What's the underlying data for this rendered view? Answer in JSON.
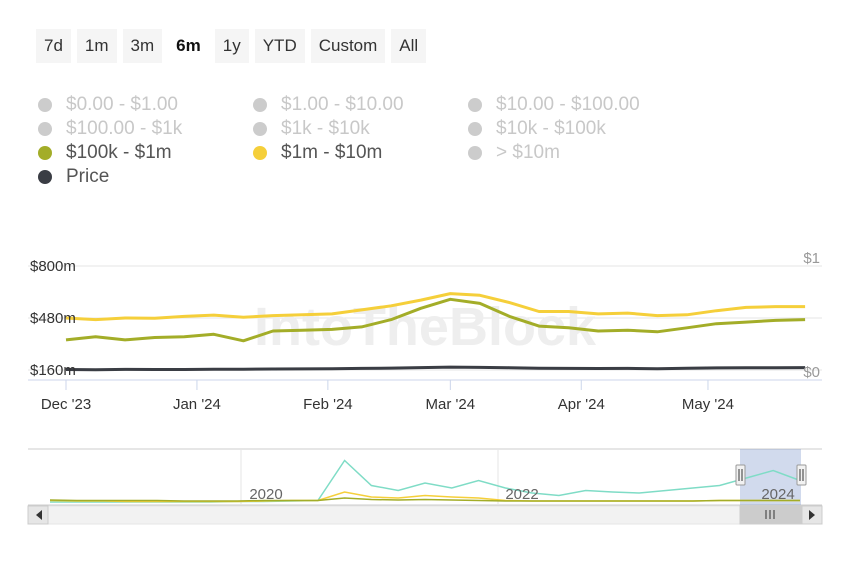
{
  "range_buttons": [
    "7d",
    "1m",
    "3m",
    "6m",
    "1y",
    "YTD",
    "Custom",
    "All"
  ],
  "active_range": "6m",
  "legend": [
    {
      "label": "$0.00 - $1.00",
      "color": "#cccccc",
      "on": false
    },
    {
      "label": "$1.00 - $10.00",
      "color": "#cccccc",
      "on": false
    },
    {
      "label": "$10.00 - $100.00",
      "color": "#cccccc",
      "on": false
    },
    {
      "label": "$100.00 - $1k",
      "color": "#cccccc",
      "on": false
    },
    {
      "label": "$1k - $10k",
      "color": "#cccccc",
      "on": false
    },
    {
      "label": "$10k - $100k",
      "color": "#cccccc",
      "on": false
    },
    {
      "label": "$100k - $1m",
      "color": "#a3ad28",
      "on": true
    },
    {
      "label": "$1m - $10m",
      "color": "#f5cf3a",
      "on": true
    },
    {
      "label": "> $10m",
      "color": "#cccccc",
      "on": false
    },
    {
      "label": "Price",
      "color": "#3a3d44",
      "on": true
    }
  ],
  "watermark": "IntoTheBlock",
  "chart_data": {
    "type": "line",
    "yaxis_left": {
      "ticks": [
        "$800m",
        "$480m",
        "$160m"
      ],
      "range": [
        160,
        800
      ]
    },
    "yaxis_right": {
      "ticks": [
        "$1",
        "$0"
      ]
    },
    "x_ticks": [
      "Dec '23",
      "Jan '24",
      "Feb '24",
      "Mar '24",
      "Apr '24",
      "May '24"
    ],
    "x": [
      "2023-12-01",
      "2023-12-08",
      "2023-12-15",
      "2023-12-22",
      "2023-12-29",
      "2024-01-05",
      "2024-01-12",
      "2024-01-19",
      "2024-01-26",
      "2024-02-02",
      "2024-02-09",
      "2024-02-16",
      "2024-02-23",
      "2024-03-01",
      "2024-03-08",
      "2024-03-15",
      "2024-03-22",
      "2024-03-29",
      "2024-04-05",
      "2024-04-12",
      "2024-04-19",
      "2024-04-26",
      "2024-05-03",
      "2024-05-10",
      "2024-05-17",
      "2024-05-24"
    ],
    "series": [
      {
        "name": "$1m - $10m",
        "color": "#f5cf3a",
        "values": [
          480,
          470,
          480,
          478,
          490,
          498,
          485,
          495,
          500,
          505,
          530,
          555,
          590,
          630,
          620,
          575,
          520,
          520,
          505,
          510,
          495,
          500,
          525,
          545,
          550,
          550
        ]
      },
      {
        "name": "$100k - $1m",
        "color": "#a3ad28",
        "values": [
          345,
          365,
          345,
          360,
          365,
          380,
          340,
          400,
          405,
          410,
          425,
          470,
          540,
          595,
          570,
          490,
          430,
          420,
          400,
          405,
          395,
          420,
          445,
          455,
          465,
          470
        ]
      },
      {
        "name": "Price",
        "color": "#3a3d44",
        "values": [
          163,
          162,
          164,
          163,
          163,
          165,
          165,
          166,
          167,
          168,
          170,
          172,
          175,
          178,
          176,
          174,
          171,
          170,
          169,
          170,
          168,
          171,
          173,
          174,
          174,
          175
        ]
      }
    ],
    "navigator": {
      "labels": [
        "2020",
        "2022",
        "2024"
      ],
      "series": [
        {
          "name": "navigator-series-1",
          "color": "#7fdcc6",
          "values": [
            0.02,
            0.02,
            0.02,
            0.02,
            0.02,
            0.02,
            0.02,
            0.03,
            0.03,
            0.04,
            0.05,
            0.85,
            0.35,
            0.25,
            0.4,
            0.3,
            0.45,
            0.3,
            0.2,
            0.15,
            0.25,
            0.22,
            0.2,
            0.25,
            0.3,
            0.35,
            0.5,
            0.65,
            0.45
          ]
        },
        {
          "name": "navigator-series-2",
          "color": "#f5cf3a",
          "values": [
            0.05,
            0.04,
            0.04,
            0.03,
            0.03,
            0.03,
            0.03,
            0.03,
            0.04,
            0.05,
            0.05,
            0.22,
            0.12,
            0.1,
            0.15,
            0.12,
            0.1,
            0.05,
            0.04,
            0.04,
            0.04,
            0.04,
            0.04,
            0.04,
            0.04,
            0.05,
            0.05,
            0.05,
            0.05
          ]
        },
        {
          "name": "navigator-series-3",
          "color": "#a3ad28",
          "values": [
            0.06,
            0.05,
            0.05,
            0.05,
            0.05,
            0.04,
            0.04,
            0.04,
            0.05,
            0.05,
            0.05,
            0.1,
            0.07,
            0.06,
            0.07,
            0.06,
            0.05,
            0.04,
            0.04,
            0.04,
            0.04,
            0.04,
            0.04,
            0.04,
            0.04,
            0.05,
            0.05,
            0.05,
            0.05
          ]
        }
      ]
    }
  }
}
